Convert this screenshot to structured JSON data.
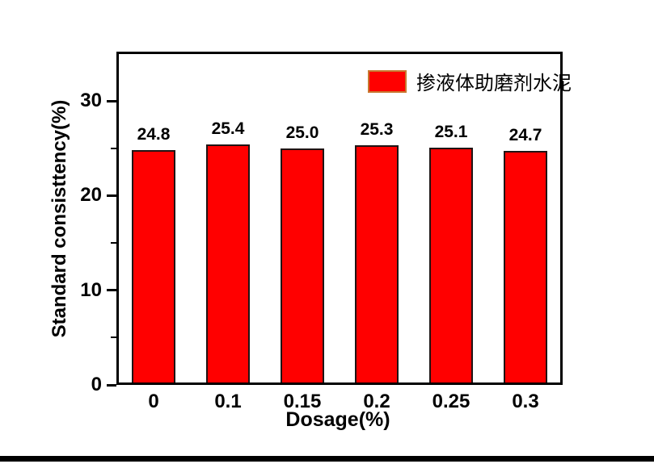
{
  "chart_data": {
    "type": "bar",
    "title": "",
    "xlabel": "Dosage(%)",
    "ylabel": "Standard consisttency(%)",
    "categories": [
      "0",
      "0.1",
      "0.15",
      "0.2",
      "0.25",
      "0.3"
    ],
    "values": [
      24.8,
      25.4,
      25.0,
      25.3,
      25.1,
      24.7
    ],
    "value_labels": [
      "24.8",
      "25.4",
      "25.0",
      "25.3",
      "25.1",
      "24.7"
    ],
    "ylim": [
      0,
      35.2
    ],
    "yticks": [
      0,
      10,
      20,
      30
    ],
    "ytick_labels": [
      "0",
      "10",
      "20",
      "30"
    ],
    "yminorticks": [
      5,
      15,
      25
    ],
    "grid": false,
    "legend_position": "top-right-inside",
    "legend": [
      {
        "label": "掺液体助磨剂水泥",
        "color": "#ff0000"
      }
    ],
    "colors": {
      "bar_fill": "#ff0000",
      "bar_border": "#1f1414",
      "axis": "#000000",
      "text": "#000000",
      "legend_swatch_border": "#c87830"
    }
  }
}
